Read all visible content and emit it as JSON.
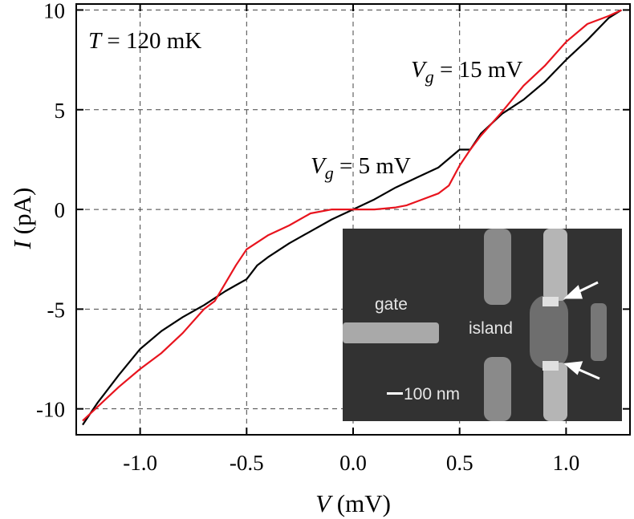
{
  "chart_data": {
    "type": "line",
    "xlabel_var": "V",
    "xlabel_unit": " (mV)",
    "ylabel_var": "I",
    "ylabel_unit": " (pA)",
    "xlim": [
      -1.3,
      1.3
    ],
    "ylim": [
      -11.3,
      10.3
    ],
    "x_ticks": [
      -1.0,
      -0.5,
      0.0,
      0.5,
      1.0
    ],
    "x_tick_labels": [
      "-1.0",
      "-0.5",
      "0.0",
      "0.5",
      "1.0"
    ],
    "y_ticks": [
      -10,
      -5,
      0,
      5,
      10
    ],
    "y_tick_labels": [
      "-10",
      "-5",
      "0",
      "5",
      "10"
    ],
    "grid": true,
    "annotations": {
      "temperature": {
        "var": "T",
        "text": " = 120 mK"
      },
      "label_vg15": {
        "var": "V",
        "sub": "g",
        "text": " = 15 mV"
      },
      "label_vg5": {
        "var": "V",
        "sub": "g",
        "text": " = 5 mV"
      }
    },
    "series": [
      {
        "color": "#000000",
        "x": [
          -1.27,
          -1.2,
          -1.1,
          -1.0,
          -0.9,
          -0.8,
          -0.7,
          -0.6,
          -0.55,
          -0.5,
          -0.45,
          -0.4,
          -0.3,
          -0.2,
          -0.1,
          0.0,
          0.1,
          0.2,
          0.3,
          0.4,
          0.5,
          0.55,
          0.6,
          0.7,
          0.8,
          0.9,
          1.0,
          1.1,
          1.2,
          1.26
        ],
        "y": [
          -10.8,
          -9.7,
          -8.3,
          -7.0,
          -6.1,
          -5.4,
          -4.8,
          -4.1,
          -3.8,
          -3.5,
          -2.8,
          -2.4,
          -1.7,
          -1.1,
          -0.5,
          0.0,
          0.5,
          1.1,
          1.6,
          2.1,
          3.0,
          3.0,
          3.8,
          4.8,
          5.5,
          6.4,
          7.5,
          8.5,
          9.6,
          10.0
        ]
      },
      {
        "color": "#e8141e",
        "x": [
          -1.27,
          -1.2,
          -1.1,
          -1.0,
          -0.9,
          -0.8,
          -0.7,
          -0.65,
          -0.6,
          -0.55,
          -0.5,
          -0.4,
          -0.3,
          -0.2,
          -0.1,
          0.0,
          0.1,
          0.2,
          0.25,
          0.3,
          0.4,
          0.45,
          0.5,
          0.55,
          0.6,
          0.7,
          0.8,
          0.9,
          1.0,
          1.1,
          1.2,
          1.26
        ],
        "y": [
          -10.6,
          -9.9,
          -8.9,
          -8.0,
          -7.2,
          -6.2,
          -5.0,
          -4.6,
          -3.7,
          -2.8,
          -2.0,
          -1.3,
          -0.8,
          -0.2,
          0.0,
          0.0,
          0.0,
          0.1,
          0.2,
          0.4,
          0.8,
          1.2,
          2.2,
          3.0,
          3.7,
          4.9,
          6.2,
          7.2,
          8.4,
          9.3,
          9.7,
          10.0
        ]
      }
    ]
  },
  "inset": {
    "label_gate": "gate",
    "label_island": "island",
    "scale_bar_label": "100 nm"
  }
}
